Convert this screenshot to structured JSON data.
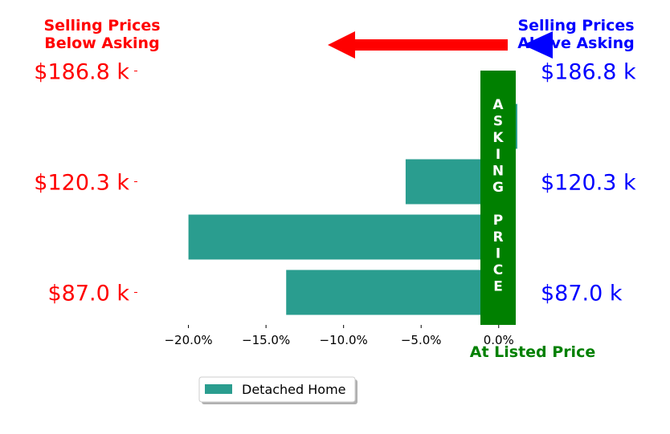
{
  "header": {
    "left": [
      "Selling Prices",
      "Below Asking"
    ],
    "right": [
      "Selling Prices",
      "Above Asking"
    ],
    "left_color": "#ff0000",
    "right_color": "#0000ff"
  },
  "asking_band": {
    "letters": [
      "A",
      "S",
      "K",
      "I",
      "N",
      "G",
      "",
      "P",
      "R",
      "I",
      "C",
      "E"
    ],
    "color": "#008000"
  },
  "listed_label": "At Listed Price",
  "legend": {
    "label": "Detached Home"
  },
  "colors": {
    "bar": "#2a9d8f",
    "arrow_red": "#ff0000",
    "arrow_blue": "#0000ff",
    "listed": "#008000"
  },
  "chart_data": {
    "type": "bar",
    "orientation": "horizontal",
    "series": [
      {
        "name": "Detached Home",
        "values": [
          -13.7,
          -20.0,
          -6.0,
          1.2
        ]
      }
    ],
    "bar_rank": [
      1,
      2,
      3,
      4
    ],
    "price_labels": [
      "$87.0 k",
      "$120.3 k",
      "$186.8 k"
    ],
    "price_label_rank": [
      1,
      3,
      5
    ],
    "xlim": [
      -23.5,
      1.1
    ],
    "xticks": [
      -20,
      -15,
      -10,
      -5,
      0
    ],
    "xtick_labels": [
      "−20.0%",
      "−15.0%",
      "−10.0%",
      "−5.0%",
      "0.0%"
    ],
    "grid": false,
    "legend_position": "bottom-center"
  }
}
